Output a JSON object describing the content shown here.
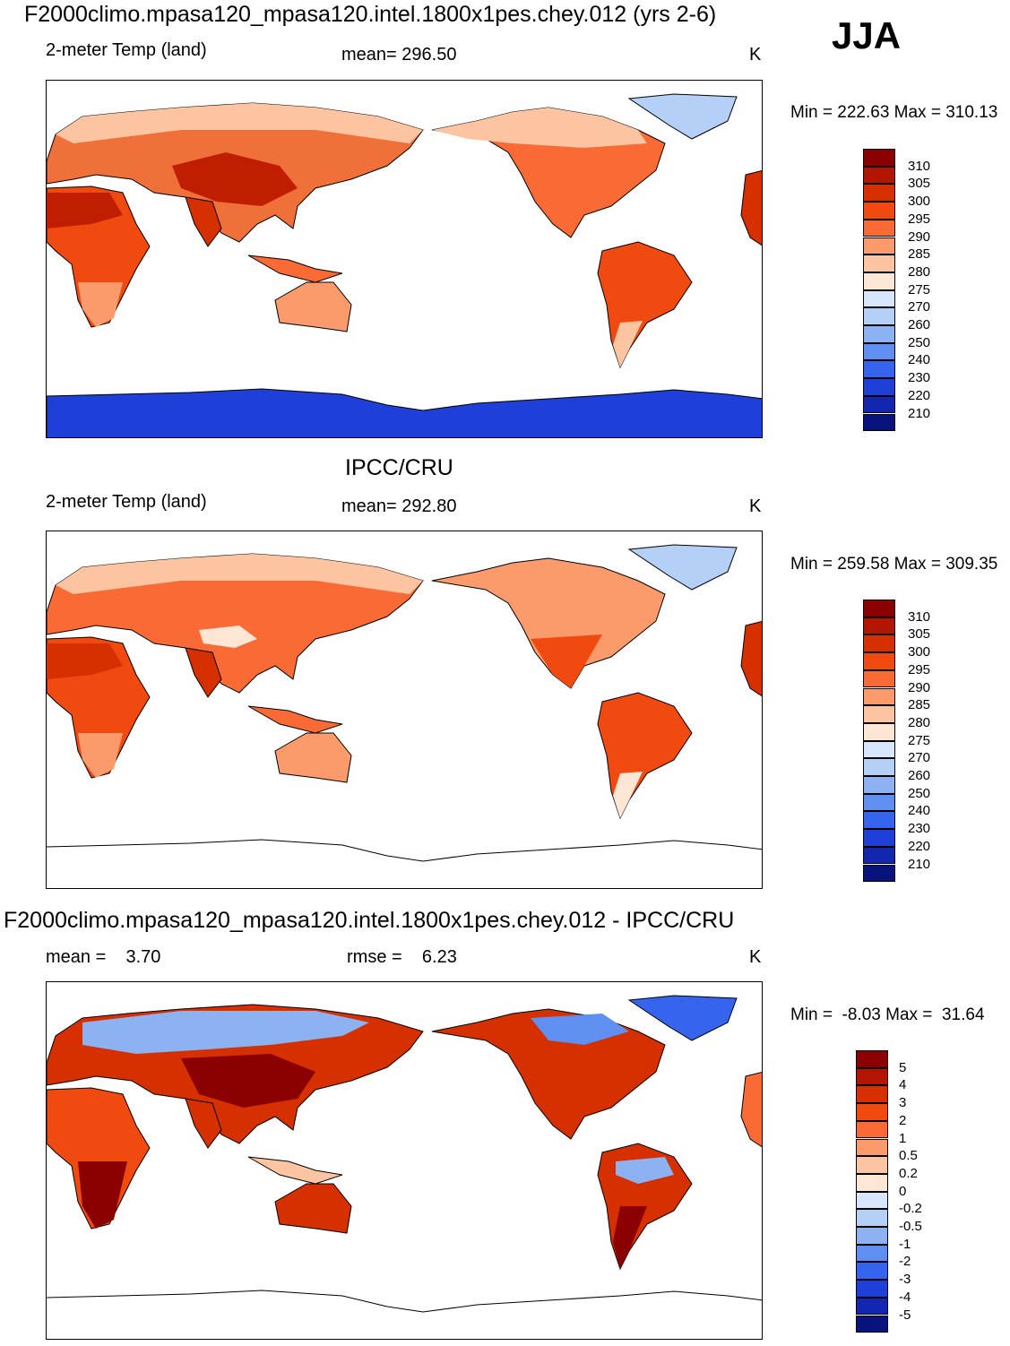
{
  "season": "JJA",
  "panels": [
    {
      "id": "model",
      "title": "F2000climo.mpasa120_mpasa120.intel.1800x1pes.chey.012 (yrs 2-6)",
      "left_label": "2-meter Temp (land)",
      "mid_label": "mean= 296.50",
      "unit": "K",
      "minmax": "Min = 222.63 Max = 310.13"
    },
    {
      "id": "obs",
      "title": "IPCC/CRU",
      "left_label": "2-meter Temp (land)",
      "mid_label": "mean= 292.80",
      "unit": "K",
      "minmax": "Min = 259.58 Max = 309.35"
    },
    {
      "id": "diff",
      "title": "F2000climo.mpasa120_mpasa120.intel.1800x1pes.chey.012 - IPCC/CRU",
      "left_label": "mean =    3.70",
      "mid_label": "rmse =    6.23",
      "unit": "K",
      "minmax": "Min =  -8.03 Max =  31.64"
    }
  ],
  "colorbar_abs": {
    "levels": [
      "310",
      "305",
      "300",
      "295",
      "290",
      "285",
      "280",
      "275",
      "270",
      "260",
      "250",
      "240",
      "230",
      "220",
      "210"
    ],
    "colors": [
      "#8b0000",
      "#b31500",
      "#d62f00",
      "#f04a10",
      "#f96a35",
      "#fb9a6a",
      "#fcc4a0",
      "#fde6d4",
      "#d7e6fa",
      "#b5d0f7",
      "#8cb2f2",
      "#5f8ff0",
      "#3565ee",
      "#1e3fd8",
      "#1226b0",
      "#08137d"
    ]
  },
  "colorbar_diff": {
    "levels": [
      "5",
      "4",
      "3",
      "2",
      "1",
      "0.5",
      "0.2",
      "0",
      "-0.2",
      "-0.5",
      "-1",
      "-2",
      "-3",
      "-4",
      "-5"
    ],
    "colors": [
      "#8b0000",
      "#b31500",
      "#d62f00",
      "#f04a10",
      "#f96a35",
      "#fb9a6a",
      "#fcc4a0",
      "#fde6d4",
      "#d7e6fa",
      "#b5d0f7",
      "#8cb2f2",
      "#5f8ff0",
      "#3565ee",
      "#1e3fd8",
      "#1226b0",
      "#08137d"
    ]
  }
}
